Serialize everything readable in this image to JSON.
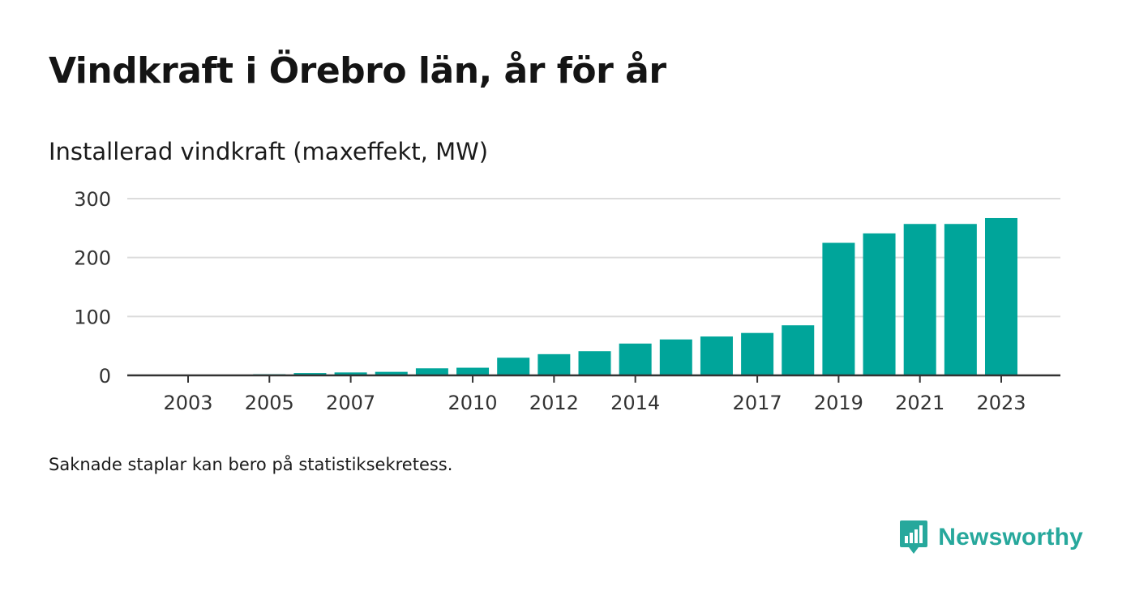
{
  "header": {
    "title": "Vindkraft i Örebro län, år för år",
    "subtitle": "Installerad vindkraft (maxeffekt, MW)"
  },
  "footer": {
    "note": "Saknade staplar kan bero på statistiksekretess.",
    "brand": "Newsworthy",
    "brand_icon": "newsworthy-logo-icon"
  },
  "colors": {
    "bar": "#00a59a",
    "grid": "#dcdcdc",
    "axis": "#333333",
    "brand": "#27a89c"
  },
  "chart_data": {
    "type": "bar",
    "title": "Vindkraft i Örebro län, år för år",
    "ylabel": "Installerad vindkraft (maxeffekt, MW)",
    "xlabel": "",
    "ylim": [
      0,
      300
    ],
    "yticks": [
      0,
      100,
      200,
      300
    ],
    "xticks": [
      2003,
      2005,
      2007,
      2010,
      2012,
      2014,
      2017,
      2019,
      2021,
      2023
    ],
    "grid": true,
    "categories": [
      2003,
      2004,
      2005,
      2006,
      2007,
      2008,
      2009,
      2010,
      2011,
      2012,
      2013,
      2014,
      2015,
      2016,
      2017,
      2018,
      2019,
      2020,
      2021,
      2022,
      2023
    ],
    "values": [
      0,
      0,
      2,
      4,
      5,
      6,
      12,
      13,
      30,
      36,
      41,
      54,
      61,
      66,
      72,
      85,
      225,
      241,
      257,
      257,
      267
    ]
  }
}
